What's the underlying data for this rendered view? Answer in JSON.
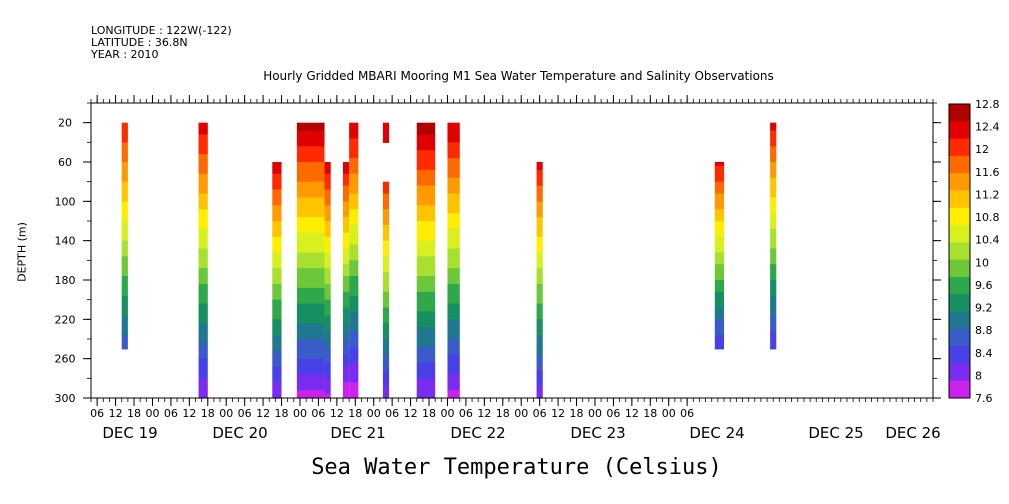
{
  "header": {
    "longitude": "LONGITUDE : 122W(-122)",
    "latitude": "LATITUDE : 36.8N",
    "year": "YEAR : 2010"
  },
  "chart_data": {
    "type": "heatmap",
    "title": "Hourly Gridded MBARI Mooring M1 Sea Water Temperature and Salinity Observations",
    "xlabel": "",
    "ylabel": "DEPTH (m)",
    "colorbar_label": "Sea Water Temperature (Celsius)",
    "x_hour_ticks": [
      "06",
      "12",
      "18",
      "00",
      "06",
      "12",
      "18",
      "00",
      "06",
      "12",
      "18",
      "00",
      "06",
      "12",
      "18",
      "00",
      "06",
      "12",
      "18",
      "00",
      "06",
      "12",
      "18",
      "00",
      "06",
      "12",
      "18",
      "00",
      "06",
      "12",
      "18",
      "00",
      "06"
    ],
    "x_day_labels": [
      "DEC 19",
      "DEC 20",
      "DEC 21",
      "DEC 22",
      "DEC 23",
      "DEC 24",
      "DEC 25",
      "DEC 26"
    ],
    "xlim_hours": [
      4,
      278
    ],
    "y_ticks": [
      20,
      60,
      100,
      140,
      180,
      220,
      260,
      300
    ],
    "ylim": [
      300,
      0
    ],
    "colorbar_ticks": [
      "12.8",
      "12.4",
      "12",
      "11.6",
      "11.2",
      "10.8",
      "10.4",
      "10",
      "9.6",
      "9.2",
      "8.8",
      "8.4",
      "8",
      "7.6"
    ],
    "colorbar_colors": [
      "#b00000",
      "#e00000",
      "#ff2a00",
      "#ff6a00",
      "#ff9a00",
      "#ffc400",
      "#ffee00",
      "#d8f020",
      "#a8e030",
      "#6cc83a",
      "#2ea84a",
      "#169060",
      "#1f7890",
      "#3a5cc8",
      "#4a40e8",
      "#7a2cf0",
      "#cc22ee"
    ],
    "vmin": 7.6,
    "vmax": 12.8,
    "columns": [
      {
        "x0": 14,
        "x1": 16,
        "dtop": 20,
        "dbot": 250,
        "ttop": 12.2,
        "tbot": 8.6
      },
      {
        "x0": 39,
        "x1": 42,
        "dtop": 20,
        "dbot": 300,
        "ttop": 12.4,
        "tbot": 7.9
      },
      {
        "x0": 63,
        "x1": 66,
        "dtop": 60,
        "dbot": 300,
        "ttop": 12.4,
        "tbot": 7.9
      },
      {
        "x0": 71,
        "x1": 80,
        "dtop": 20,
        "dbot": 300,
        "ttop": 12.6,
        "tbot": 7.8
      },
      {
        "x0": 80,
        "x1": 82,
        "dtop": 60,
        "dbot": 300,
        "ttop": 12.4,
        "tbot": 7.8
      },
      {
        "x0": 86,
        "x1": 88,
        "dtop": 60,
        "dbot": 300,
        "ttop": 12.4,
        "tbot": 7.6
      },
      {
        "x0": 88,
        "x1": 91,
        "dtop": 20,
        "dbot": 300,
        "ttop": 12.5,
        "tbot": 7.6
      },
      {
        "x0": 99,
        "x1": 101,
        "dtop": 20,
        "dbot": 40,
        "ttop": 12.5,
        "tbot": 12.4
      },
      {
        "x0": 99,
        "x1": 101,
        "dtop": 80,
        "dbot": 300,
        "ttop": 12.1,
        "tbot": 8.0
      },
      {
        "x0": 110,
        "x1": 116,
        "dtop": 20,
        "dbot": 300,
        "ttop": 12.7,
        "tbot": 7.9
      },
      {
        "x0": 120,
        "x1": 124,
        "dtop": 20,
        "dbot": 300,
        "ttop": 12.5,
        "tbot": 7.8
      },
      {
        "x0": 149,
        "x1": 151,
        "dtop": 60,
        "dbot": 300,
        "ttop": 12.3,
        "tbot": 8.0
      },
      {
        "x0": 207,
        "x1": 210,
        "dtop": 60,
        "dbot": 250,
        "ttop": 12.3,
        "tbot": 8.2
      },
      {
        "x0": 225,
        "x1": 227,
        "dtop": 20,
        "dbot": 250,
        "ttop": 12.3,
        "tbot": 8.2
      }
    ]
  }
}
